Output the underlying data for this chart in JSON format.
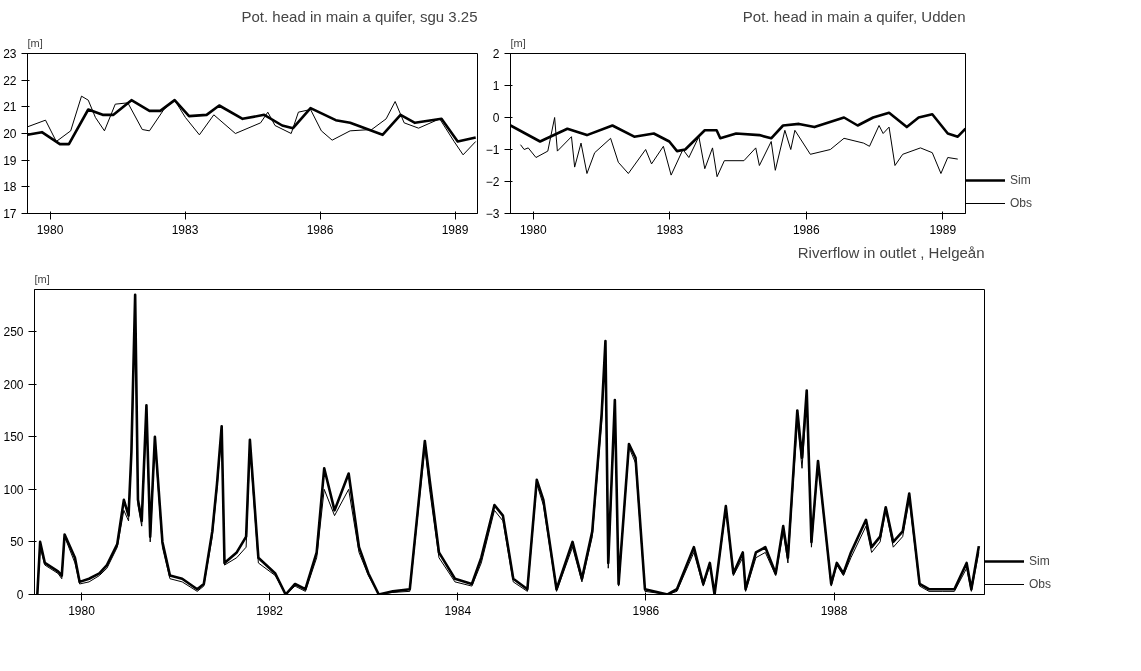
{
  "chart_data": [
    {
      "type": "line",
      "title": "Pot. head in main a quifer, sgu 3.25",
      "ylabel": "[m]",
      "xlim": [
        1980,
        1990
      ],
      "ylim": [
        17,
        23
      ],
      "yticks": [
        17,
        18,
        19,
        20,
        21,
        22,
        23
      ],
      "xticks": [
        {
          "value": 1980.5,
          "label": "1980"
        },
        {
          "value": 1983.5,
          "label": "1983"
        },
        {
          "value": 1986.5,
          "label": "1986"
        },
        {
          "value": 1989.5,
          "label": "1989"
        }
      ],
      "grid": false,
      "legend": false,
      "series": [
        {
          "color": "#000000",
          "x": [
            1980.0,
            1980.32,
            1980.72,
            1980.92,
            1981.35,
            1981.67,
            1981.91,
            1982.31,
            1982.71,
            1982.95,
            1983.27,
            1983.59,
            1983.98,
            1984.26,
            1984.78,
            1985.26,
            1985.66,
            1985.9,
            1986.29,
            1986.85,
            1987.17,
            1987.89,
            1988.29,
            1988.61,
            1989.2,
            1989.56,
            1989.96
          ],
          "values": [
            19.95,
            20.05,
            19.6,
            19.6,
            20.9,
            20.7,
            20.7,
            21.25,
            20.85,
            20.85,
            21.25,
            20.65,
            20.7,
            21.05,
            20.55,
            20.7,
            20.3,
            20.2,
            20.95,
            20.5,
            20.4,
            19.95,
            20.7,
            20.4,
            20.55,
            19.7,
            19.85
          ]
        },
        {
          "color": "#000000",
          "x": [
            1980.0,
            1980.4,
            1980.64,
            1980.96,
            1981.2,
            1981.35,
            1981.51,
            1981.71,
            1981.95,
            1982.23,
            1982.55,
            1982.71,
            1983.03,
            1983.27,
            1983.51,
            1983.82,
            1984.14,
            1984.62,
            1985.18,
            1985.34,
            1985.5,
            1985.86,
            1986.02,
            1986.29,
            1986.53,
            1986.77,
            1987.17,
            1987.65,
            1987.97,
            1988.17,
            1988.37,
            1988.69,
            1989.16,
            1989.48,
            1989.68,
            1989.96
          ],
          "values": [
            20.25,
            20.5,
            19.7,
            20.1,
            21.4,
            21.25,
            20.6,
            20.1,
            21.1,
            21.15,
            20.15,
            20.1,
            20.9,
            21.25,
            20.6,
            19.95,
            20.7,
            20.0,
            20.4,
            20.8,
            20.3,
            20.0,
            20.8,
            20.9,
            20.1,
            19.75,
            20.1,
            20.15,
            20.55,
            21.2,
            20.4,
            20.2,
            20.55,
            19.7,
            19.2,
            19.7
          ]
        }
      ]
    },
    {
      "type": "line",
      "title": "Pot. head in main a quifer, Udden",
      "ylabel": "[m]",
      "xlim": [
        1980,
        1990
      ],
      "ylim": [
        -3,
        2
      ],
      "yticks": [
        -3,
        -2,
        -1,
        0,
        1,
        2
      ],
      "xticks": [
        {
          "value": 1980.5,
          "label": "1980"
        },
        {
          "value": 1983.5,
          "label": "1983"
        },
        {
          "value": 1986.5,
          "label": "1986"
        },
        {
          "value": 1989.5,
          "label": "1989"
        }
      ],
      "grid": false,
      "legend": "bottom right",
      "series": [
        {
          "name": "Sim",
          "color": "#000000",
          "x": [
            1980.0,
            1980.65,
            1981.25,
            1981.68,
            1982.24,
            1982.72,
            1983.15,
            1983.49,
            1983.66,
            1983.84,
            1984.27,
            1984.53,
            1984.61,
            1984.96,
            1985.47,
            1985.73,
            1985.99,
            1986.34,
            1986.68,
            1987.33,
            1987.63,
            1987.97,
            1988.32,
            1988.71,
            1988.97,
            1989.27,
            1989.61,
            1989.83,
            1990.0
          ],
          "values": [
            -0.25,
            -0.75,
            -0.35,
            -0.55,
            -0.25,
            -0.6,
            -0.5,
            -0.75,
            -1.05,
            -1.0,
            -0.4,
            -0.4,
            -0.65,
            -0.5,
            -0.55,
            -0.65,
            -0.25,
            -0.2,
            -0.3,
            0.0,
            -0.25,
            0.0,
            0.15,
            -0.3,
            0.0,
            0.1,
            -0.5,
            -0.6,
            -0.35
          ]
        },
        {
          "name": "Obs",
          "color": "#000000",
          "x": [
            1980.22,
            1980.3,
            1980.39,
            1980.56,
            1980.82,
            1980.97,
            1981.03,
            1981.34,
            1981.41,
            1981.55,
            1981.68,
            1981.85,
            1982.2,
            1982.37,
            1982.59,
            1982.97,
            1983.1,
            1983.36,
            1983.53,
            1983.79,
            1983.92,
            1984.14,
            1984.27,
            1984.44,
            1984.54,
            1984.7,
            1985.13,
            1985.39,
            1985.47,
            1985.73,
            1985.82,
            1986.03,
            1986.16,
            1986.25,
            1986.59,
            1987.03,
            1987.33,
            1987.76,
            1987.89,
            1988.1,
            1988.19,
            1988.32,
            1988.45,
            1988.62,
            1989.01,
            1989.27,
            1989.46,
            1989.61,
            1989.83
          ],
          "values": [
            -0.85,
            -1.0,
            -0.95,
            -1.25,
            -1.05,
            0.0,
            -1.05,
            -0.6,
            -1.55,
            -0.8,
            -1.75,
            -1.1,
            -0.65,
            -1.4,
            -1.75,
            -1.0,
            -1.45,
            -0.9,
            -1.8,
            -1.0,
            -1.25,
            -0.6,
            -1.6,
            -0.95,
            -1.85,
            -1.35,
            -1.35,
            -0.95,
            -1.5,
            -0.75,
            -1.65,
            -0.4,
            -1.0,
            -0.4,
            -1.15,
            -1.0,
            -0.65,
            -0.8,
            -0.9,
            -0.25,
            -0.5,
            -0.3,
            -1.5,
            -1.15,
            -0.95,
            -1.1,
            -1.75,
            -1.25,
            -1.3
          ]
        }
      ]
    },
    {
      "type": "line",
      "title": "Riverflow in outlet , Helgeån",
      "ylabel": "[m]",
      "xlim": [
        1980,
        1990.1
      ],
      "ylim": [
        0,
        290
      ],
      "yticks": [
        0,
        50,
        100,
        150,
        200,
        250
      ],
      "xticks": [
        {
          "value": 1980.5,
          "label": "1980"
        },
        {
          "value": 1982.5,
          "label": "1982"
        },
        {
          "value": 1984.5,
          "label": "1984"
        },
        {
          "value": 1986.5,
          "label": "1986"
        },
        {
          "value": 1988.5,
          "label": "1988"
        }
      ],
      "grid": false,
      "legend": "bottom right",
      "x": [
        1980.03,
        1980.06,
        1980.11,
        1980.25,
        1980.29,
        1980.32,
        1980.43,
        1980.48,
        1980.58,
        1980.69,
        1980.77,
        1980.88,
        1980.95,
        1981.0,
        1981.03,
        1981.07,
        1981.1,
        1981.14,
        1981.19,
        1981.23,
        1981.28,
        1981.36,
        1981.44,
        1981.57,
        1981.73,
        1981.8,
        1981.89,
        1981.94,
        1981.99,
        1982.02,
        1982.15,
        1982.25,
        1982.29,
        1982.38,
        1982.56,
        1982.67,
        1982.77,
        1982.88,
        1983.0,
        1983.08,
        1983.19,
        1983.34,
        1983.45,
        1983.55,
        1983.66,
        1983.81,
        1983.99,
        1984.15,
        1984.2,
        1984.3,
        1984.47,
        1984.65,
        1984.75,
        1984.89,
        1984.98,
        1985.09,
        1985.24,
        1985.34,
        1985.41,
        1985.55,
        1985.72,
        1985.82,
        1985.93,
        1986.03,
        1986.07,
        1986.1,
        1986.17,
        1986.21,
        1986.32,
        1986.39,
        1986.49,
        1986.73,
        1986.83,
        1987.01,
        1987.11,
        1987.18,
        1987.23,
        1987.35,
        1987.43,
        1987.53,
        1987.56,
        1987.67,
        1987.77,
        1987.88,
        1987.96,
        1988.01,
        1988.11,
        1988.16,
        1988.21,
        1988.26,
        1988.33,
        1988.47,
        1988.53,
        1988.6,
        1988.68,
        1988.84,
        1988.9,
        1988.99,
        1989.05,
        1989.13,
        1989.23,
        1989.3,
        1989.41,
        1989.51,
        1989.65,
        1989.78,
        1989.91,
        1989.96,
        1990.04
      ],
      "series": [
        {
          "name": "Sim",
          "color": "#000000",
          "values": [
            0,
            50,
            30,
            22,
            18,
            57,
            35,
            12,
            15,
            20,
            28,
            48,
            90,
            75,
            135,
            285,
            90,
            70,
            180,
            55,
            150,
            50,
            18,
            15,
            5,
            10,
            60,
            105,
            160,
            30,
            40,
            55,
            147,
            35,
            20,
            0,
            10,
            5,
            40,
            120,
            80,
            115,
            45,
            20,
            0,
            3,
            5,
            146,
            110,
            40,
            15,
            10,
            35,
            85,
            75,
            15,
            5,
            109,
            90,
            5,
            50,
            15,
            60,
            172,
            241,
            30,
            185,
            10,
            143,
            130,
            5,
            0,
            5,
            45,
            10,
            30,
            0,
            84,
            20,
            40,
            5,
            40,
            45,
            20,
            65,
            35,
            175,
            130,
            194,
            50,
            127,
            10,
            30,
            20,
            40,
            71,
            45,
            55,
            83,
            50,
            60,
            96,
            10,
            5,
            5,
            5,
            30,
            5,
            46
          ]
        },
        {
          "name": "Obs",
          "color": "#000000",
          "values": [
            0,
            45,
            28,
            20,
            15,
            55,
            30,
            10,
            12,
            18,
            25,
            45,
            80,
            70,
            130,
            270,
            85,
            65,
            170,
            50,
            145,
            45,
            15,
            12,
            3,
            8,
            55,
            100,
            155,
            28,
            35,
            45,
            140,
            30,
            18,
            0,
            8,
            3,
            35,
            100,
            75,
            100,
            40,
            18,
            0,
            2,
            3,
            140,
            100,
            35,
            12,
            8,
            30,
            80,
            70,
            12,
            3,
            105,
            85,
            3,
            45,
            12,
            55,
            165,
            235,
            25,
            180,
            8,
            140,
            125,
            3,
            0,
            3,
            40,
            8,
            28,
            0,
            80,
            18,
            35,
            3,
            35,
            40,
            18,
            60,
            30,
            165,
            120,
            185,
            45,
            125,
            8,
            28,
            18,
            35,
            65,
            40,
            50,
            80,
            45,
            55,
            90,
            8,
            3,
            3,
            3,
            25,
            3,
            40
          ]
        }
      ]
    }
  ]
}
